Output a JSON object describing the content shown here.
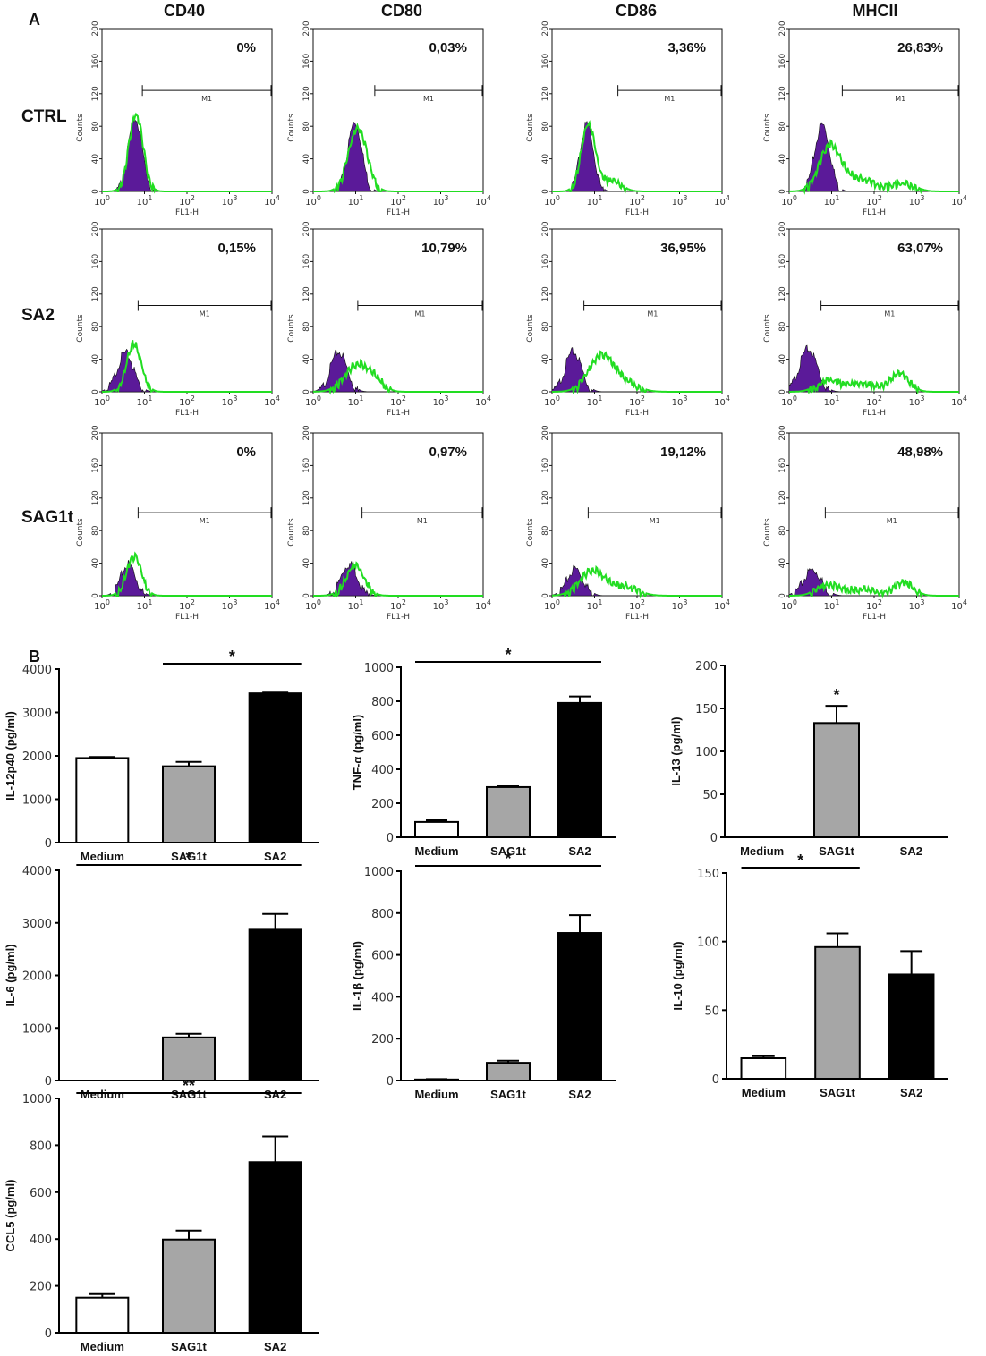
{
  "panel_labels": {
    "a": "A",
    "b": "B"
  },
  "colors": {
    "filled_histogram": "#5b1a99",
    "overlay_line": "#22dd22",
    "bar_medium": "#ffffff",
    "bar_sag1t": "#a6a6a6",
    "bar_sa2": "#000000"
  },
  "flow": {
    "markers": [
      "CD40",
      "CD80",
      "CD86",
      "MHCII"
    ],
    "conditions": [
      "CTRL",
      "SA2",
      "SAG1t"
    ],
    "y_ticks": [
      "0",
      "40",
      "80",
      "120",
      "160",
      "200"
    ],
    "y_label": "Counts",
    "x_label": "FL1-H",
    "x_ticks": [
      {
        "base": "10",
        "exp": "0"
      },
      {
        "base": "10",
        "exp": "1"
      },
      {
        "base": "10",
        "exp": "2"
      },
      {
        "base": "10",
        "exp": "3"
      },
      {
        "base": "10",
        "exp": "4"
      }
    ],
    "gate_label": "M1",
    "percentages": [
      [
        "0%",
        "0,03%",
        "3,36%",
        "26,83%"
      ],
      [
        "0,15%",
        "10,79%",
        "36,95%",
        "63,07%"
      ],
      [
        "0%",
        "0,97%",
        "19,12%",
        "48,98%"
      ]
    ]
  },
  "chart_data": [
    {
      "type": "bar",
      "title": "",
      "xlabel": "",
      "ylabel": "IL-12p40 (pg/ml)",
      "categories": [
        "Medium",
        "SAG1t",
        "SA2"
      ],
      "values": [
        1950,
        1760,
        3440
      ],
      "errors": [
        25,
        100,
        20
      ],
      "ylim": [
        0,
        4000
      ],
      "yticks": [
        0,
        1000,
        2000,
        3000,
        4000
      ],
      "significance": [
        {
          "from": 1,
          "to": 2,
          "label": "*"
        }
      ]
    },
    {
      "type": "bar",
      "title": "",
      "xlabel": "",
      "ylabel": "TNF-α (pg/ml)",
      "categories": [
        "Medium",
        "SAG1t",
        "SA2"
      ],
      "values": [
        90,
        295,
        790
      ],
      "errors": [
        10,
        5,
        38
      ],
      "ylim": [
        0,
        1000
      ],
      "yticks": [
        0,
        200,
        400,
        600,
        800,
        1000
      ],
      "significance": [
        {
          "from": 0,
          "to": 2,
          "label": "*"
        }
      ]
    },
    {
      "type": "bar",
      "title": "",
      "xlabel": "",
      "ylabel": "IL-13 (pg/ml)",
      "categories": [
        "Medium",
        "SAG1t",
        "SA2"
      ],
      "values": [
        0,
        133,
        0
      ],
      "errors": [
        0,
        20,
        0
      ],
      "ylim": [
        0,
        200
      ],
      "yticks": [
        0,
        50,
        100,
        150,
        200
      ],
      "significance": [
        {
          "from": 1,
          "to": 1,
          "label": "*"
        }
      ]
    },
    {
      "type": "bar",
      "title": "",
      "xlabel": "",
      "ylabel": "IL-6 (pg/ml)",
      "categories": [
        "Medium",
        "SAG1t",
        "SA2"
      ],
      "values": [
        0,
        820,
        2870
      ],
      "errors": [
        0,
        70,
        300
      ],
      "ylim": [
        0,
        4000
      ],
      "yticks": [
        0,
        1000,
        2000,
        3000,
        4000
      ],
      "significance": [
        {
          "from": 0,
          "to": 2,
          "label": "*"
        }
      ]
    },
    {
      "type": "bar",
      "title": "",
      "xlabel": "",
      "ylabel": "IL-1β (pg/ml)",
      "categories": [
        "Medium",
        "SAG1t",
        "SA2"
      ],
      "values": [
        5,
        85,
        705
      ],
      "errors": [
        2,
        10,
        85
      ],
      "ylim": [
        0,
        1000
      ],
      "yticks": [
        0,
        200,
        400,
        600,
        800,
        1000
      ],
      "significance": [
        {
          "from": 0,
          "to": 2,
          "label": "*"
        }
      ]
    },
    {
      "type": "bar",
      "title": "",
      "xlabel": "",
      "ylabel": "IL-10 (pg/ml)",
      "categories": [
        "Medium",
        "SAG1t",
        "SA2"
      ],
      "values": [
        15,
        96,
        76
      ],
      "errors": [
        1.5,
        10,
        17
      ],
      "ylim": [
        0,
        150
      ],
      "yticks": [
        0,
        50,
        100,
        150
      ],
      "significance": [
        {
          "from": 0,
          "to": 1,
          "label": "*"
        }
      ]
    },
    {
      "type": "bar",
      "title": "",
      "xlabel": "",
      "ylabel": "CCL5 (pg/ml)",
      "categories": [
        "Medium",
        "SAG1t",
        "SA2"
      ],
      "values": [
        150,
        398,
        728
      ],
      "errors": [
        15,
        38,
        110
      ],
      "ylim": [
        0,
        1000
      ],
      "yticks": [
        0,
        200,
        400,
        600,
        800,
        1000
      ],
      "significance": [
        {
          "from": 0,
          "to": 2,
          "label": "**"
        }
      ]
    }
  ]
}
